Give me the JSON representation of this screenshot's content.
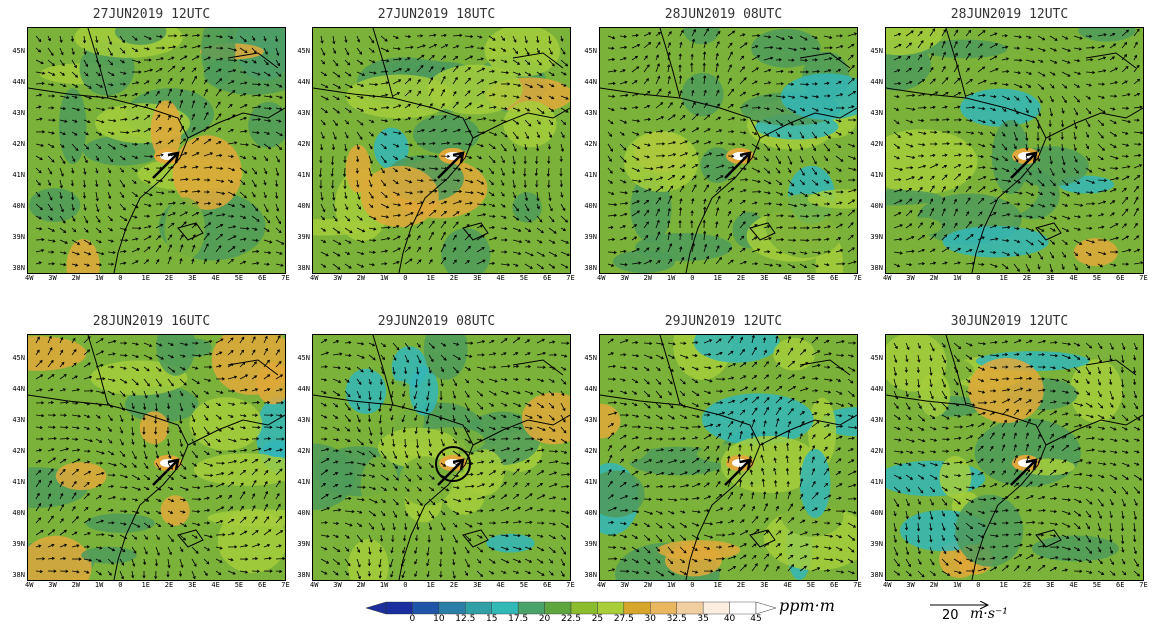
{
  "panels": [
    {
      "title": "27JUN2019 12UTC"
    },
    {
      "title": "27JUN2019 18UTC"
    },
    {
      "title": "28JUN2019 08UTC"
    },
    {
      "title": "28JUN2019 12UTC"
    },
    {
      "title": "28JUN2019 16UTC"
    },
    {
      "title": "29JUN2019 08UTC"
    },
    {
      "title": "29JUN2019 12UTC"
    },
    {
      "title": "30JUN2019 12UTC"
    }
  ],
  "lat_labels": [
    "45N",
    "44N",
    "43N",
    "42N",
    "41N",
    "40N",
    "39N",
    "38N"
  ],
  "lon_labels": [
    "4W",
    "3W",
    "2W",
    "1W",
    "0",
    "1E",
    "2E",
    "3E",
    "4E",
    "5E",
    "6E",
    "7E"
  ],
  "colorbar": {
    "unit": "ppm·m",
    "ticks": [
      "0",
      "10",
      "12.5",
      "15",
      "17.5",
      "20",
      "22.5",
      "25",
      "27.5",
      "30",
      "32.5",
      "35",
      "40",
      "45"
    ],
    "colors": [
      "#1a2e9e",
      "#1f55a8",
      "#2a7fa8",
      "#2fa0a6",
      "#33b8b8",
      "#4aa36a",
      "#5fa63e",
      "#8cbd2e",
      "#a8cf3a",
      "#d8a62a",
      "#e8b860",
      "#f2cfa0",
      "#fbeee0",
      "#ffffff"
    ]
  },
  "reference_vector": {
    "value": "20",
    "unit": "m·s⁻¹"
  },
  "colors": {
    "green_dark": "#4f9a5a",
    "green_mid": "#7ab23a",
    "green_light": "#a4cc3c",
    "orange": "#e0a83a",
    "cyan": "#33b6b8",
    "white": "#ffffff",
    "land_line": "#000000"
  }
}
